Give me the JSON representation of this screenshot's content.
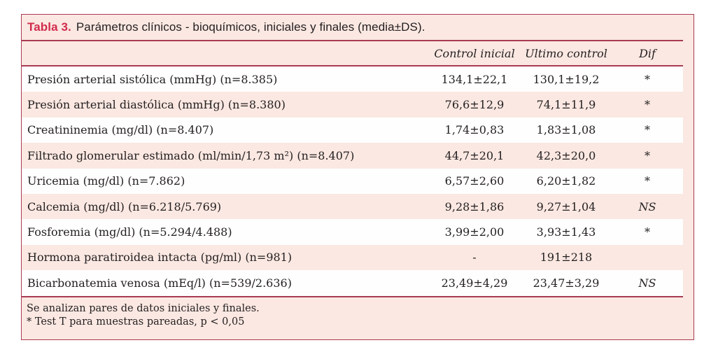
{
  "colors": {
    "accent_red": "#d12b4c",
    "rule_dark_red": "#a83b52",
    "panel_pink": "#fbe8e2",
    "row_white": "#fefefe",
    "text": "#231f20"
  },
  "table": {
    "title_label": "Tabla 3.",
    "title_text": "Parámetros clínicos - bioquímicos, iniciales y finales (media±DS).",
    "columns": {
      "parameter": "",
      "control_inicial": "Control inicial",
      "ultimo_control": "Ultimo control",
      "dif": "Dif"
    },
    "rows": [
      {
        "label": "Presión arterial sistólica (mmHg) (n=8.385)",
        "control_inicial": "134,1±22,1",
        "ultimo_control": "130,1±19,2",
        "dif": "*"
      },
      {
        "label": "Presión arterial diastólica (mmHg) (n=8.380)",
        "control_inicial": "76,6±12,9",
        "ultimo_control": "74,1±11,9",
        "dif": "*"
      },
      {
        "label": "Creatininemia (mg/dl) (n=8.407)",
        "control_inicial": "1,74±0,83",
        "ultimo_control": "1,83±1,08",
        "dif": "*"
      },
      {
        "label": "Filtrado glomerular estimado (ml/min/1,73 m²) (n=8.407)",
        "control_inicial": "44,7±20,1",
        "ultimo_control": "42,3±20,0",
        "dif": "*"
      },
      {
        "label": "Uricemia (mg/dl) (n=7.862)",
        "control_inicial": "6,57±2,60",
        "ultimo_control": "6,20±1,82",
        "dif": "*"
      },
      {
        "label": "Calcemia (mg/dl) (n=6.218/5.769)",
        "control_inicial": "9,28±1,86",
        "ultimo_control": "9,27±1,04",
        "dif": "NS"
      },
      {
        "label": "Fosforemia (mg/dl) (n=5.294/4.488)",
        "control_inicial": "3,99±2,00",
        "ultimo_control": "3,93±1,43",
        "dif": "*"
      },
      {
        "label": "Hormona paratiroidea intacta (pg/ml) (n=981)",
        "control_inicial": "-",
        "ultimo_control": "191±218",
        "dif": ""
      },
      {
        "label": "Bicarbonatemia venosa (mEq/l) (n=539/2.636)",
        "control_inicial": "23,49±4,29",
        "ultimo_control": "23,47±3,29",
        "dif": "NS"
      }
    ],
    "footnotes": {
      "line1": "Se analizan pares de datos iniciales y finales.",
      "line2": "* Test T para muestras pareadas, p < 0,05"
    }
  }
}
